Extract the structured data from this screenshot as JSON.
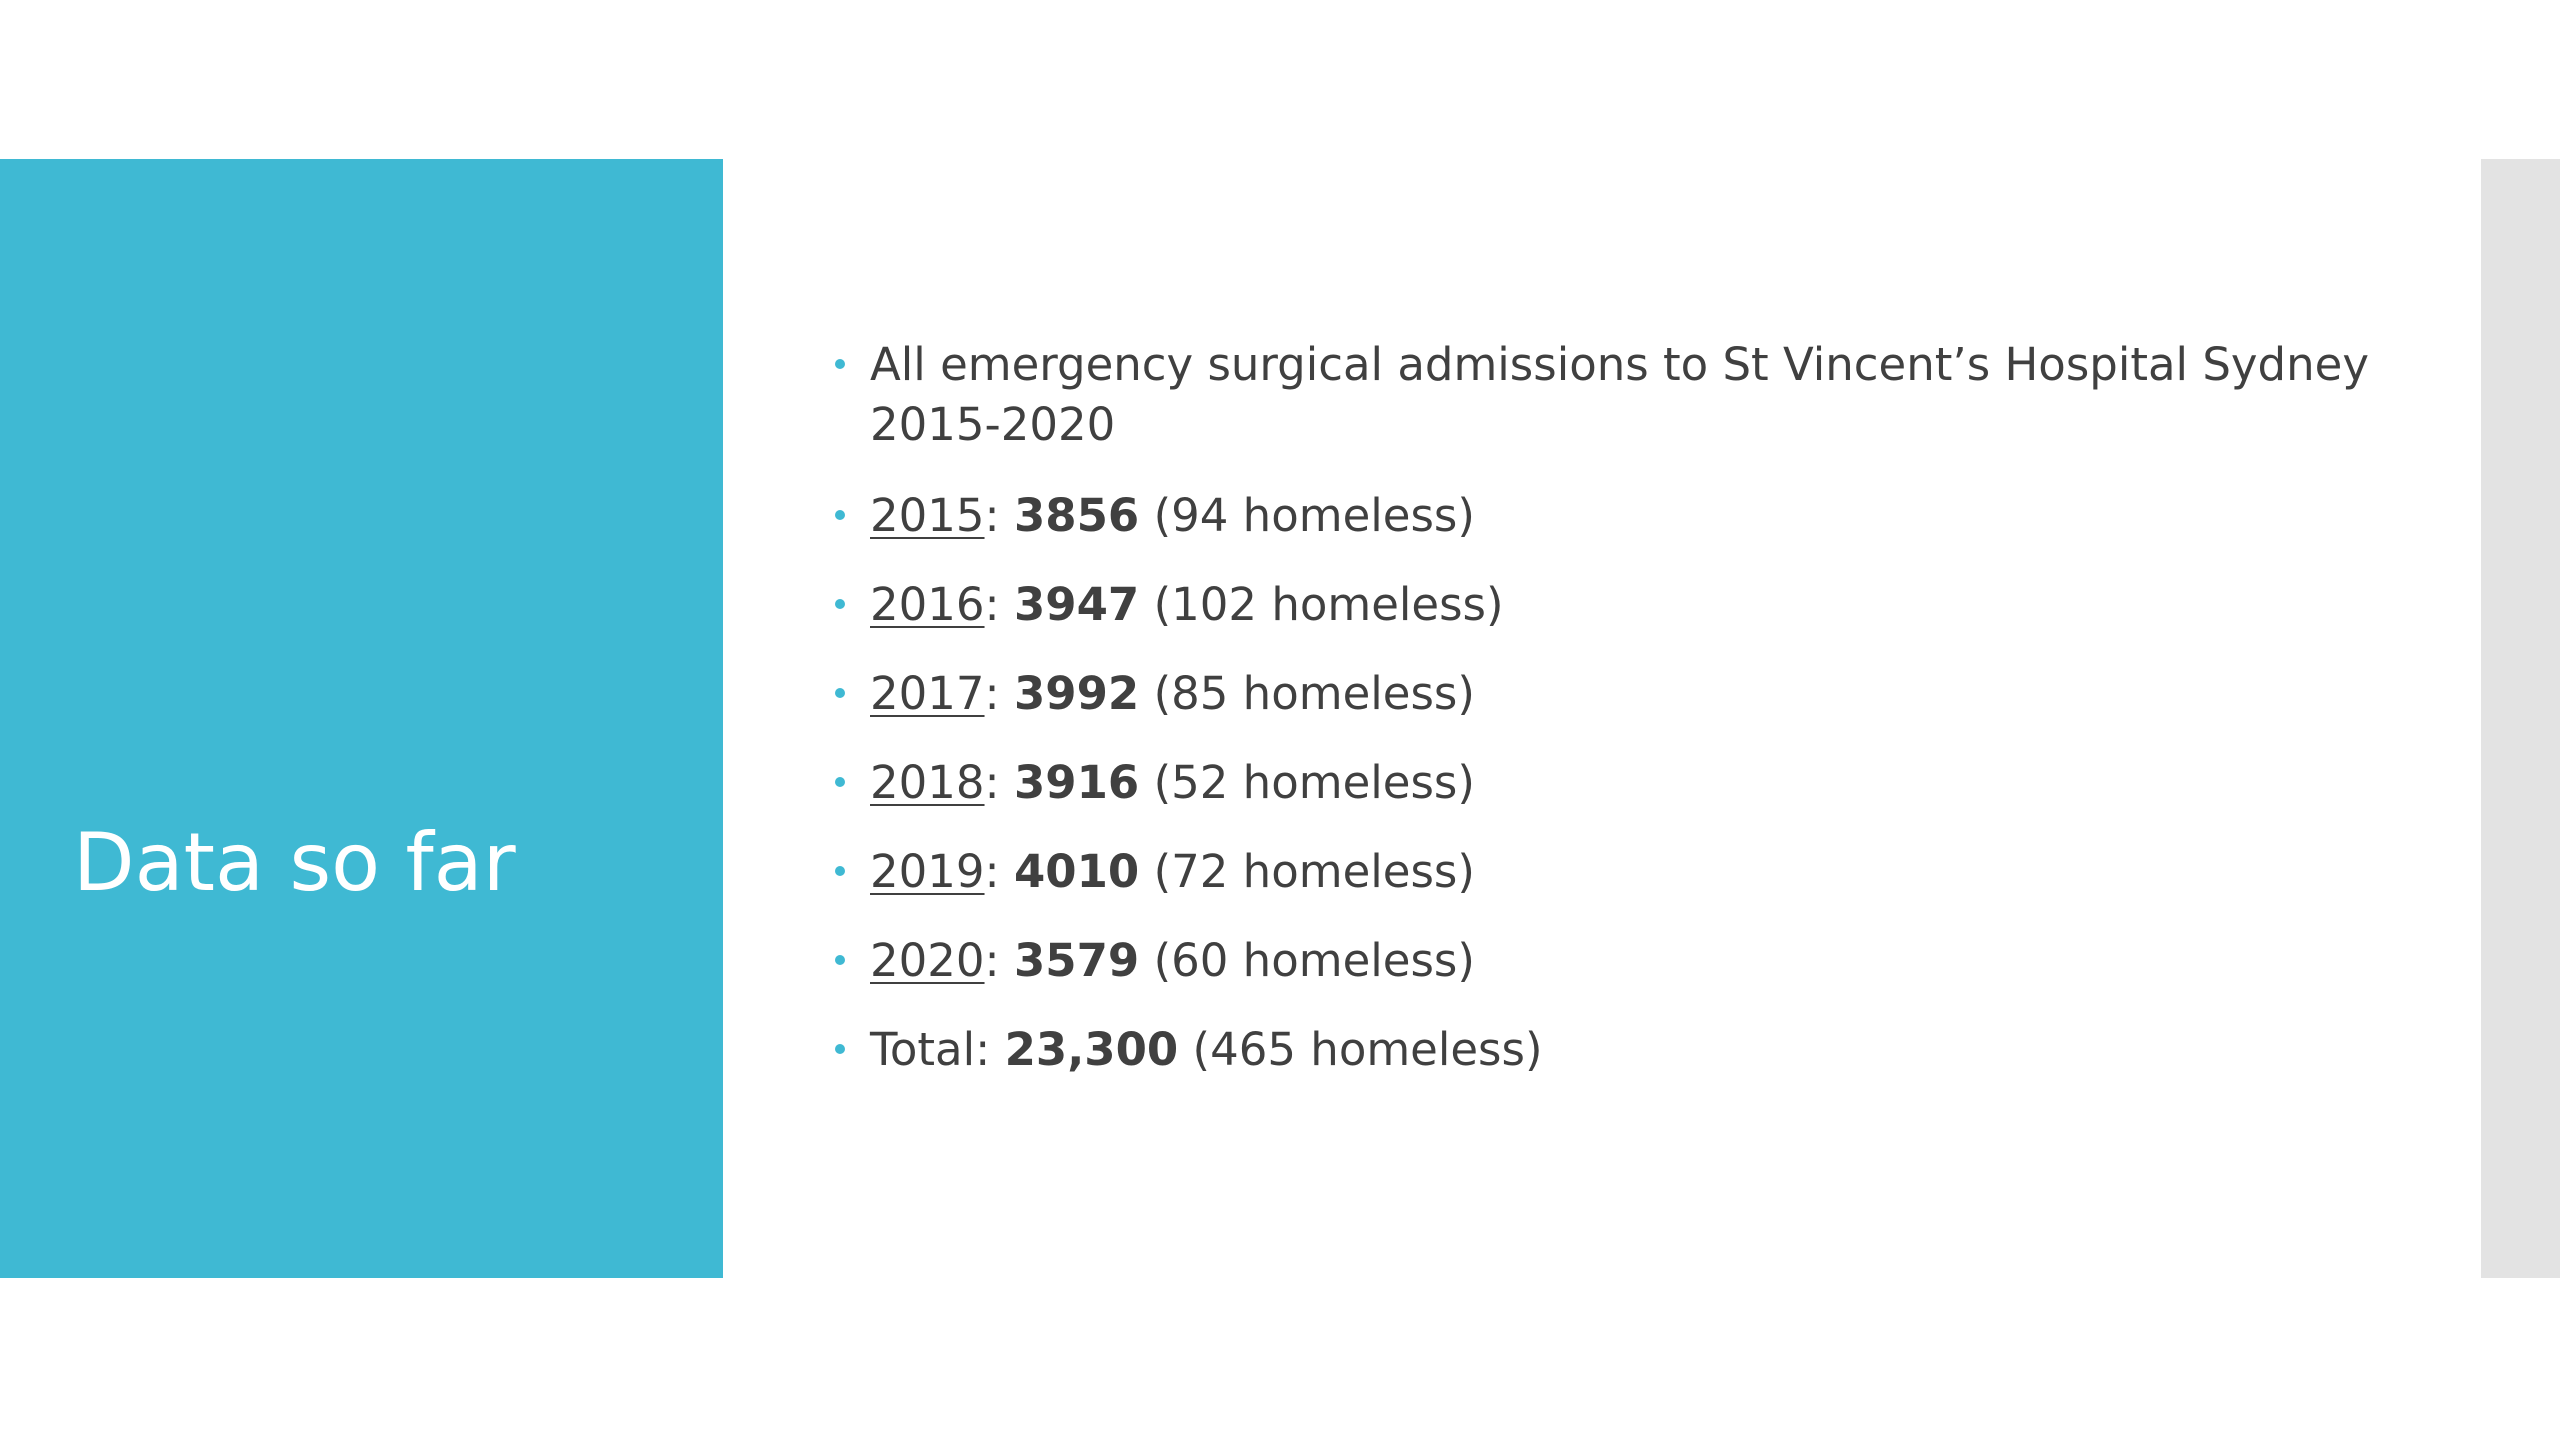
{
  "slide": {
    "title": "Data so far",
    "bullets": {
      "intro": "All emergency surgical admissions to St Vincent’s Hospital Sydney 2015-2020",
      "years": [
        {
          "year": "2015",
          "count": "3856",
          "homeless": "(94 homeless)"
        },
        {
          "year": "2016",
          "count": "3947",
          "homeless": "(102 homeless)"
        },
        {
          "year": "2017",
          "count": "3992",
          "homeless": "(85 homeless)"
        },
        {
          "year": "2018",
          "count": "3916",
          "homeless": "(52 homeless)"
        },
        {
          "year": "2019",
          "count": "4010",
          "homeless": "(72 homeless)"
        },
        {
          "year": "2020",
          "count": "3579",
          "homeless": "(60 homeless)"
        }
      ],
      "total": {
        "label": "Total",
        "count": "23,300",
        "homeless": "(465 homeless)"
      }
    }
  },
  "colors": {
    "accent": "#3fb9d3",
    "text": "#404040",
    "side_bar": "#e3e3e3",
    "title_text": "#ffffff"
  }
}
